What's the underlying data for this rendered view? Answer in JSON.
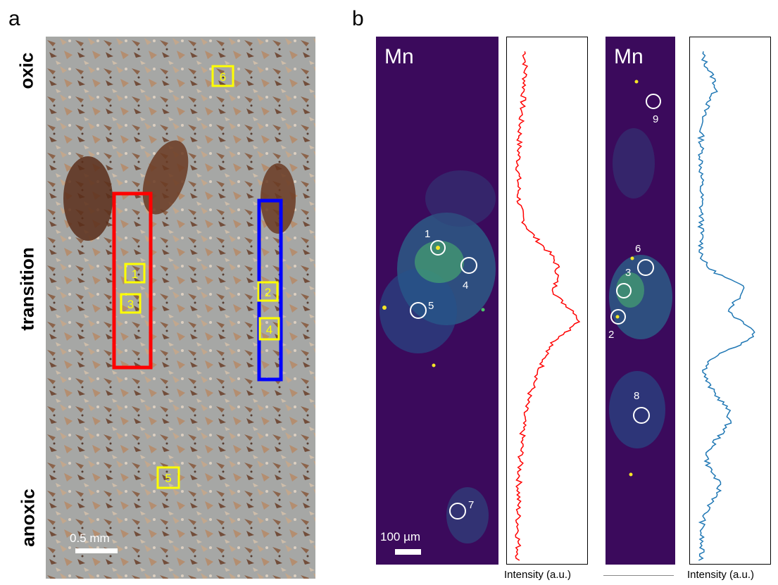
{
  "panel_a": {
    "letter": "a",
    "side_labels": [
      "oxic",
      "transition",
      "anoxic"
    ],
    "scale_bar": "0.5 mm",
    "boxes": [
      {
        "label": "1",
        "color": "#ffff00"
      },
      {
        "label": "2",
        "color": "#ffff00"
      },
      {
        "label": "3",
        "color": "#ffff00"
      },
      {
        "label": "4",
        "color": "#ffff00"
      },
      {
        "label": "5",
        "color": "#ffff00"
      },
      {
        "label": "6",
        "color": "#ffff00"
      }
    ],
    "highlight_colors": {
      "left": "#ff0000",
      "right": "#0000ff"
    }
  },
  "panel_b": {
    "letter": "b",
    "maps": [
      {
        "element": "Mn",
        "scale_bar": "100 µm",
        "spots": [
          "1",
          "4",
          "5",
          "7"
        ],
        "profile_color": "#ff0000",
        "profile_label": "Intensity (a.u.)"
      },
      {
        "element": "Mn",
        "spots": [
          "9",
          "6",
          "3",
          "2",
          "8"
        ],
        "profile_color": "#1f77b4",
        "profile_label": "Intensity (a.u.)"
      }
    ]
  },
  "colors": {
    "map_background": "#3b0a5c",
    "map_mid": "#2a6b8e",
    "map_high": "#4ec46a",
    "map_peak": "#f5e626"
  }
}
